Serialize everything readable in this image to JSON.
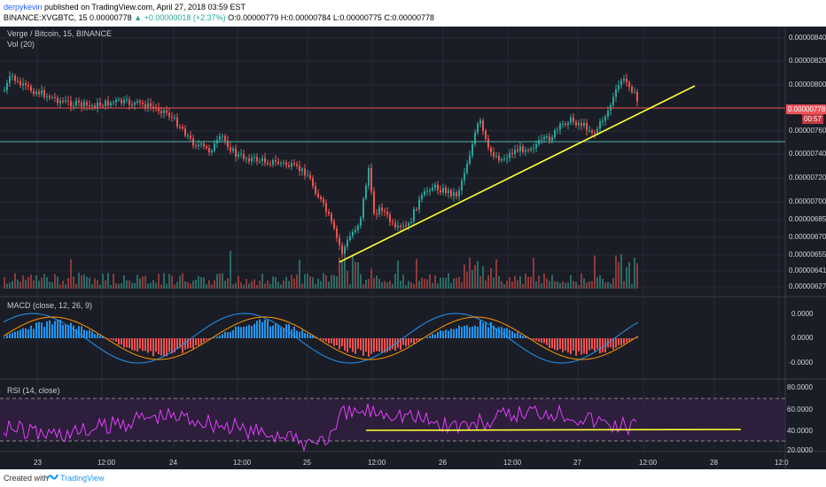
{
  "header": {
    "author": "derpykevin",
    "published": "published on TradingView.com, April 27, 2018 03:59 EST",
    "symbol": "BINANCE:XVGBTC, 15",
    "price": "0.00000778",
    "change": "+0.00000018 (+2.37%)",
    "open_label": "O:",
    "open": "0.00000779",
    "high_label": "H:",
    "high": "0.00000784",
    "low_label": "L:",
    "low": "0.00000775",
    "close_label": "C:",
    "close": "0.00000778"
  },
  "panes": {
    "main_title": "Verge / Bitcoin, 15, BINANCE",
    "volume_title": "Vol (20)",
    "macd_title": "MACD (close, 12, 26, 9)",
    "rsi_title": "RSI (14, close)"
  },
  "price_axis": [
    "0.00000840",
    "0.00000820",
    "0.00000800",
    "0.00000778",
    "0.00000760",
    "0.00000740",
    "0.00000720",
    "0.00000700",
    "0.00000685",
    "0.00000670",
    "0.00000655",
    "0.00000641",
    "0.00000627"
  ],
  "current_price_tag": "0.00000778",
  "candle_timer": "00:57",
  "macd_axis": [
    "0.0000",
    "0.0000",
    "-0.0000"
  ],
  "rsi_axis": [
    "80.0000",
    "60.0000",
    "40.0000",
    "20.0000"
  ],
  "time_axis": [
    "23",
    "12:00",
    "24",
    "12:00",
    "25",
    "12:00",
    "26",
    "12:00",
    "27",
    "12:00",
    "28",
    "12:0"
  ],
  "colors": {
    "background": "#1b1d26",
    "up": "#26a69a",
    "down": "#ef5350",
    "trendline": "#ffff33",
    "rsi": "#e040fb",
    "macd": "#2196f3",
    "signal": "#ff9800"
  },
  "footer": {
    "created_with": "Created with",
    "brand": "TradingView",
    "logo_icon": "tradingview-logo-icon"
  }
}
